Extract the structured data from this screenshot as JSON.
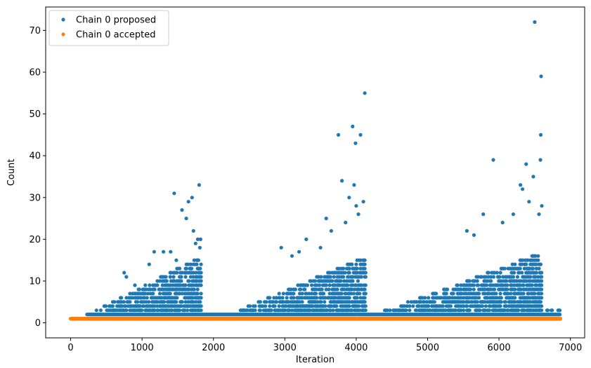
{
  "chart_data": {
    "type": "scatter",
    "title": "",
    "xlabel": "Iteration",
    "ylabel": "Count",
    "xlim": [
      -350,
      7200
    ],
    "ylim": [
      -3.6,
      75.6
    ],
    "xticks": [
      0,
      1000,
      2000,
      3000,
      4000,
      5000,
      6000,
      7000
    ],
    "yticks": [
      0,
      10,
      20,
      30,
      40,
      50,
      60,
      70
    ],
    "legend_position": "top-left",
    "grid": false,
    "series": [
      {
        "name": "Chain 0 proposed",
        "color": "#1f77b4",
        "bands": [
          {
            "x0": 0,
            "x1": 230,
            "ymin": 1,
            "ymax": 1
          },
          {
            "x0": 230,
            "x1": 1830,
            "ymin": 1,
            "ymax_start": 2,
            "ymax_end": 16
          },
          {
            "x0": 1830,
            "x1": 2200,
            "ymin": 1,
            "ymax_start": 2,
            "ymax_end": 2
          },
          {
            "x0": 2200,
            "x1": 4140,
            "ymin": 1,
            "ymax_start": 2,
            "ymax_end": 16
          },
          {
            "x0": 4140,
            "x1": 4400,
            "ymin": 1,
            "ymax_start": 2,
            "ymax_end": 2
          },
          {
            "x0": 4400,
            "x1": 6600,
            "ymin": 1,
            "ymax_start": 3,
            "ymax_end": 17
          },
          {
            "x0": 6600,
            "x1": 6860,
            "ymin": 1,
            "ymax_start": 3,
            "ymax_end": 3
          }
        ],
        "outliers": [
          [
            750,
            12
          ],
          [
            780,
            11
          ],
          [
            900,
            9
          ],
          [
            1100,
            14
          ],
          [
            1170,
            17
          ],
          [
            1300,
            17
          ],
          [
            1400,
            17
          ],
          [
            1450,
            31
          ],
          [
            1480,
            15
          ],
          [
            1560,
            27
          ],
          [
            1620,
            25
          ],
          [
            1650,
            29
          ],
          [
            1700,
            30
          ],
          [
            1720,
            22
          ],
          [
            1750,
            19
          ],
          [
            1780,
            20
          ],
          [
            1800,
            33
          ],
          [
            1810,
            18
          ],
          [
            1820,
            20
          ],
          [
            2950,
            18
          ],
          [
            3100,
            16
          ],
          [
            3200,
            17
          ],
          [
            3300,
            20
          ],
          [
            3500,
            18
          ],
          [
            3580,
            25
          ],
          [
            3650,
            22
          ],
          [
            3750,
            45
          ],
          [
            3800,
            34
          ],
          [
            3850,
            24
          ],
          [
            3900,
            30
          ],
          [
            3950,
            47
          ],
          [
            3970,
            33
          ],
          [
            3990,
            43
          ],
          [
            4000,
            28
          ],
          [
            4030,
            26
          ],
          [
            4060,
            45
          ],
          [
            4100,
            29
          ],
          [
            4120,
            55
          ],
          [
            5550,
            22
          ],
          [
            5650,
            21
          ],
          [
            5780,
            26
          ],
          [
            5920,
            39
          ],
          [
            6050,
            24
          ],
          [
            6200,
            26
          ],
          [
            6300,
            33
          ],
          [
            6330,
            32
          ],
          [
            6380,
            38
          ],
          [
            6420,
            29
          ],
          [
            6480,
            35
          ],
          [
            6500,
            72
          ],
          [
            6560,
            26
          ],
          [
            6580,
            39
          ],
          [
            6590,
            59
          ],
          [
            6585,
            45
          ],
          [
            6600,
            28
          ]
        ]
      },
      {
        "name": "Chain 0 accepted",
        "color": "#ff7f0e",
        "bands": [
          {
            "x0": 0,
            "x1": 6860,
            "ymin": 1,
            "ymax": 1
          }
        ]
      }
    ]
  }
}
